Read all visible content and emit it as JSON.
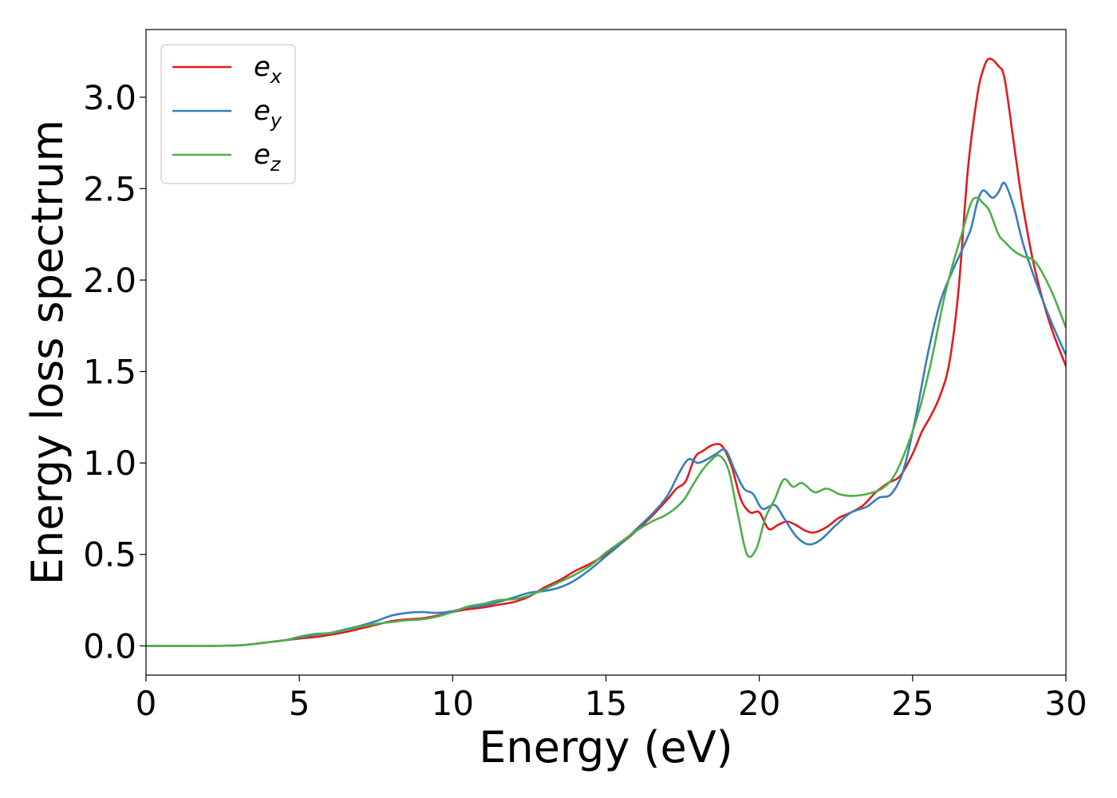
{
  "chart_data": {
    "type": "line",
    "title": "",
    "xlabel": "Energy (eV)",
    "ylabel": "Energy loss spectrum",
    "xlim": [
      0,
      30
    ],
    "ylim": [
      -0.16,
      3.37
    ],
    "xticks": [
      0,
      5,
      10,
      15,
      20,
      25,
      30
    ],
    "xtick_labels": [
      "0",
      "5",
      "10",
      "15",
      "20",
      "25",
      "30"
    ],
    "yticks": [
      0.0,
      0.5,
      1.0,
      1.5,
      2.0,
      2.5,
      3.0
    ],
    "ytick_labels": [
      "0.0",
      "0.5",
      "1.0",
      "1.5",
      "2.0",
      "2.5",
      "3.0"
    ],
    "grid": false,
    "legend_position": "top-left",
    "series": [
      {
        "name": "e_x",
        "legend_base": "e",
        "legend_sub": "x",
        "color": "#e41a1c",
        "points": [
          [
            0,
            0
          ],
          [
            2,
            0
          ],
          [
            3,
            0.002
          ],
          [
            3.5,
            0.01
          ],
          [
            4,
            0.02
          ],
          [
            4.5,
            0.03
          ],
          [
            5,
            0.04
          ],
          [
            5.5,
            0.048
          ],
          [
            6,
            0.06
          ],
          [
            6.5,
            0.075
          ],
          [
            7,
            0.095
          ],
          [
            7.5,
            0.115
          ],
          [
            8,
            0.135
          ],
          [
            8.5,
            0.145
          ],
          [
            9,
            0.15
          ],
          [
            9.5,
            0.165
          ],
          [
            10,
            0.185
          ],
          [
            10.5,
            0.2
          ],
          [
            11,
            0.21
          ],
          [
            11.5,
            0.225
          ],
          [
            12,
            0.24
          ],
          [
            12.5,
            0.27
          ],
          [
            13,
            0.32
          ],
          [
            13.5,
            0.36
          ],
          [
            14,
            0.41
          ],
          [
            14.5,
            0.45
          ],
          [
            15,
            0.5
          ],
          [
            15.5,
            0.56
          ],
          [
            16,
            0.63
          ],
          [
            16.5,
            0.71
          ],
          [
            17,
            0.8
          ],
          [
            17.3,
            0.86
          ],
          [
            17.6,
            0.9
          ],
          [
            17.9,
            1.03
          ],
          [
            18.2,
            1.07
          ],
          [
            18.5,
            1.1
          ],
          [
            18.8,
            1.09
          ],
          [
            19.1,
            0.98
          ],
          [
            19.4,
            0.8
          ],
          [
            19.7,
            0.73
          ],
          [
            20,
            0.73
          ],
          [
            20.3,
            0.64
          ],
          [
            20.6,
            0.66
          ],
          [
            20.9,
            0.68
          ],
          [
            21.2,
            0.66
          ],
          [
            21.5,
            0.63
          ],
          [
            21.8,
            0.62
          ],
          [
            22.2,
            0.65
          ],
          [
            22.6,
            0.7
          ],
          [
            23,
            0.73
          ],
          [
            23.4,
            0.77
          ],
          [
            23.8,
            0.84
          ],
          [
            24.2,
            0.89
          ],
          [
            24.6,
            0.93
          ],
          [
            25,
            1.05
          ],
          [
            25.3,
            1.17
          ],
          [
            25.6,
            1.26
          ],
          [
            25.9,
            1.37
          ],
          [
            26.2,
            1.55
          ],
          [
            26.5,
            1.95
          ],
          [
            26.8,
            2.6
          ],
          [
            27.1,
            3.0
          ],
          [
            27.3,
            3.15
          ],
          [
            27.5,
            3.21
          ],
          [
            27.8,
            3.17
          ],
          [
            28,
            3.1
          ],
          [
            28.3,
            2.75
          ],
          [
            28.6,
            2.4
          ],
          [
            29,
            2.05
          ],
          [
            29.5,
            1.75
          ],
          [
            30,
            1.53
          ]
        ]
      },
      {
        "name": "e_y",
        "legend_base": "e",
        "legend_sub": "y",
        "color": "#377eb8",
        "points": [
          [
            0,
            0
          ],
          [
            2,
            0
          ],
          [
            3,
            0.003
          ],
          [
            3.5,
            0.01
          ],
          [
            4,
            0.02
          ],
          [
            4.5,
            0.03
          ],
          [
            5,
            0.045
          ],
          [
            5.5,
            0.06
          ],
          [
            6,
            0.07
          ],
          [
            6.5,
            0.09
          ],
          [
            7,
            0.11
          ],
          [
            7.5,
            0.135
          ],
          [
            8,
            0.165
          ],
          [
            8.5,
            0.18
          ],
          [
            9,
            0.185
          ],
          [
            9.5,
            0.18
          ],
          [
            10,
            0.19
          ],
          [
            10.5,
            0.21
          ],
          [
            11,
            0.22
          ],
          [
            11.5,
            0.24
          ],
          [
            12,
            0.265
          ],
          [
            12.5,
            0.29
          ],
          [
            13,
            0.3
          ],
          [
            13.5,
            0.32
          ],
          [
            14,
            0.36
          ],
          [
            14.5,
            0.42
          ],
          [
            15,
            0.49
          ],
          [
            15.5,
            0.56
          ],
          [
            16,
            0.64
          ],
          [
            16.5,
            0.72
          ],
          [
            17,
            0.82
          ],
          [
            17.4,
            0.95
          ],
          [
            17.7,
            1.02
          ],
          [
            18,
            1.0
          ],
          [
            18.3,
            1.02
          ],
          [
            18.6,
            1.05
          ],
          [
            18.9,
            1.07
          ],
          [
            19.2,
            0.96
          ],
          [
            19.5,
            0.86
          ],
          [
            19.8,
            0.83
          ],
          [
            20.1,
            0.75
          ],
          [
            20.5,
            0.77
          ],
          [
            20.8,
            0.7
          ],
          [
            21.2,
            0.6
          ],
          [
            21.6,
            0.555
          ],
          [
            22,
            0.58
          ],
          [
            22.5,
            0.66
          ],
          [
            23,
            0.73
          ],
          [
            23.5,
            0.76
          ],
          [
            23.9,
            0.81
          ],
          [
            24.3,
            0.83
          ],
          [
            24.7,
            0.96
          ],
          [
            25.1,
            1.25
          ],
          [
            25.5,
            1.6
          ],
          [
            25.9,
            1.88
          ],
          [
            26.3,
            2.05
          ],
          [
            26.6,
            2.16
          ],
          [
            26.9,
            2.28
          ],
          [
            27.1,
            2.42
          ],
          [
            27.3,
            2.49
          ],
          [
            27.6,
            2.45
          ],
          [
            27.8,
            2.48
          ],
          [
            28,
            2.53
          ],
          [
            28.3,
            2.4
          ],
          [
            28.6,
            2.2
          ],
          [
            29,
            2.0
          ],
          [
            29.5,
            1.78
          ],
          [
            30,
            1.59
          ]
        ]
      },
      {
        "name": "e_z",
        "legend_base": "e",
        "legend_sub": "z",
        "color": "#4daf4a",
        "points": [
          [
            0,
            0
          ],
          [
            2,
            0
          ],
          [
            3,
            0.002
          ],
          [
            3.5,
            0.01
          ],
          [
            4,
            0.02
          ],
          [
            4.5,
            0.03
          ],
          [
            5,
            0.05
          ],
          [
            5.5,
            0.065
          ],
          [
            6,
            0.07
          ],
          [
            6.5,
            0.085
          ],
          [
            7,
            0.105
          ],
          [
            7.5,
            0.12
          ],
          [
            8,
            0.13
          ],
          [
            8.5,
            0.14
          ],
          [
            9,
            0.145
          ],
          [
            9.5,
            0.16
          ],
          [
            10,
            0.185
          ],
          [
            10.5,
            0.215
          ],
          [
            11,
            0.23
          ],
          [
            11.5,
            0.25
          ],
          [
            12,
            0.255
          ],
          [
            12.5,
            0.275
          ],
          [
            13,
            0.31
          ],
          [
            13.5,
            0.35
          ],
          [
            14,
            0.39
          ],
          [
            14.5,
            0.44
          ],
          [
            15,
            0.51
          ],
          [
            15.5,
            0.57
          ],
          [
            16,
            0.63
          ],
          [
            16.5,
            0.68
          ],
          [
            17,
            0.72
          ],
          [
            17.5,
            0.79
          ],
          [
            17.8,
            0.87
          ],
          [
            18.1,
            0.95
          ],
          [
            18.4,
            1.01
          ],
          [
            18.7,
            1.04
          ],
          [
            19,
            0.96
          ],
          [
            19.3,
            0.72
          ],
          [
            19.6,
            0.5
          ],
          [
            19.9,
            0.53
          ],
          [
            20.2,
            0.7
          ],
          [
            20.5,
            0.8
          ],
          [
            20.8,
            0.91
          ],
          [
            21.1,
            0.87
          ],
          [
            21.4,
            0.89
          ],
          [
            21.8,
            0.84
          ],
          [
            22.2,
            0.86
          ],
          [
            22.6,
            0.83
          ],
          [
            23,
            0.82
          ],
          [
            23.5,
            0.83
          ],
          [
            24,
            0.86
          ],
          [
            24.4,
            0.93
          ],
          [
            24.8,
            1.08
          ],
          [
            25.2,
            1.28
          ],
          [
            25.6,
            1.55
          ],
          [
            26,
            1.88
          ],
          [
            26.3,
            2.08
          ],
          [
            26.6,
            2.25
          ],
          [
            26.9,
            2.42
          ],
          [
            27.1,
            2.45
          ],
          [
            27.3,
            2.42
          ],
          [
            27.5,
            2.38
          ],
          [
            27.8,
            2.25
          ],
          [
            28,
            2.21
          ],
          [
            28.3,
            2.16
          ],
          [
            28.6,
            2.13
          ],
          [
            29,
            2.1
          ],
          [
            29.5,
            1.95
          ],
          [
            30,
            1.74
          ]
        ]
      }
    ]
  }
}
